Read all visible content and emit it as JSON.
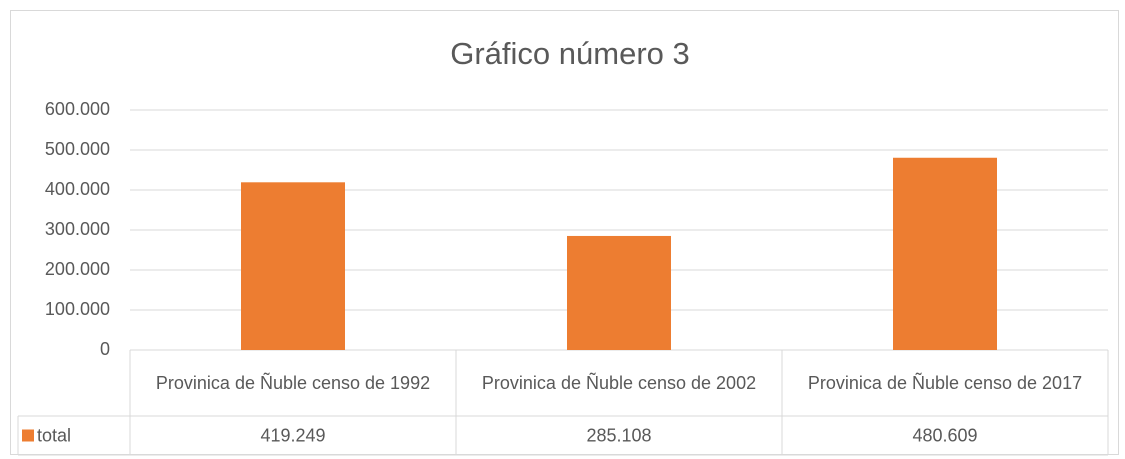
{
  "chart_data": {
    "type": "bar",
    "title": "Gráfico número 3",
    "categories": [
      "Provinica de Ñuble censo de 1992",
      "Provinica de Ñuble censo de 2002",
      "Provinica de Ñuble censo de 2017"
    ],
    "series": [
      {
        "name": "total",
        "color": "#ed7d31",
        "values": [
          419249,
          285108,
          480609
        ],
        "value_labels": [
          "419.249",
          "285.108",
          "480.609"
        ]
      }
    ],
    "ylim": [
      0,
      600000
    ],
    "yticks": [
      0,
      {
        "value": 100000,
        "label": "100.000"
      },
      {
        "value": 200000,
        "label": "200.000"
      },
      {
        "value": 300000,
        "label": "300.000"
      },
      {
        "value": 400000,
        "label": "400.000"
      },
      {
        "value": 500000,
        "label": "500.000"
      },
      {
        "value": 600000,
        "label": "600.000"
      }
    ],
    "grid": true
  }
}
